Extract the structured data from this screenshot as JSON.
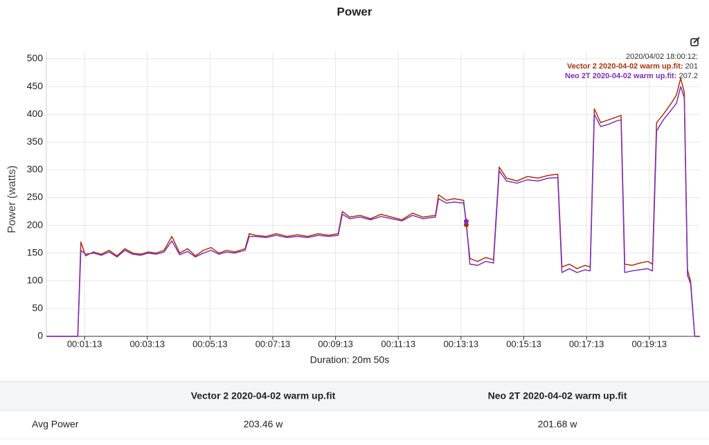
{
  "chart_data": {
    "type": "line",
    "title": "Power",
    "xlabel": "Duration: 20m 50s",
    "ylabel": "Power (watts)",
    "xlim": [
      0,
      1250
    ],
    "ylim": [
      0,
      512
    ],
    "xticks": [
      {
        "value": 73,
        "label": "00:01:13"
      },
      {
        "value": 193,
        "label": "00:03:13"
      },
      {
        "value": 313,
        "label": "00:05:13"
      },
      {
        "value": 433,
        "label": "00:07:13"
      },
      {
        "value": 553,
        "label": "00:09:13"
      },
      {
        "value": 673,
        "label": "00:11:13"
      },
      {
        "value": 793,
        "label": "00:13:13"
      },
      {
        "value": 913,
        "label": "00:15:13"
      },
      {
        "value": 1033,
        "label": "00:17:13"
      },
      {
        "value": 1153,
        "label": "00:19:13"
      }
    ],
    "yticks": [
      0,
      50,
      100,
      150,
      200,
      250,
      300,
      350,
      400,
      450,
      500
    ],
    "grid": true,
    "x": [
      0,
      60,
      66,
      75,
      90,
      105,
      120,
      135,
      150,
      165,
      180,
      195,
      210,
      225,
      240,
      255,
      270,
      285,
      300,
      315,
      330,
      345,
      360,
      380,
      388,
      400,
      420,
      440,
      460,
      480,
      500,
      520,
      540,
      558,
      566,
      580,
      600,
      620,
      640,
      660,
      680,
      700,
      720,
      744,
      750,
      765,
      780,
      798,
      803,
      810,
      825,
      840,
      855,
      866,
      880,
      900,
      920,
      940,
      960,
      978,
      986,
      1000,
      1015,
      1030,
      1040,
      1048,
      1060,
      1075,
      1090,
      1099,
      1106,
      1120,
      1135,
      1150,
      1159,
      1167,
      1180,
      1195,
      1205,
      1213,
      1220,
      1226,
      1232,
      1240,
      1250
    ],
    "series": [
      {
        "name": "Vector 2 2020-04-02 warm up.fit",
        "color": "#a8320c",
        "values": [
          0,
          0,
          170,
          145,
          152,
          148,
          155,
          145,
          158,
          150,
          148,
          152,
          150,
          155,
          180,
          150,
          158,
          145,
          155,
          160,
          150,
          155,
          152,
          158,
          185,
          182,
          180,
          185,
          180,
          183,
          180,
          185,
          182,
          185,
          225,
          215,
          218,
          212,
          220,
          215,
          210,
          222,
          215,
          218,
          255,
          245,
          248,
          245,
          201,
          140,
          135,
          142,
          138,
          305,
          285,
          280,
          288,
          285,
          290,
          292,
          125,
          130,
          122,
          128,
          125,
          410,
          385,
          390,
          395,
          398,
          130,
          128,
          132,
          135,
          130,
          385,
          400,
          420,
          435,
          465,
          440,
          120,
          100,
          0,
          0
        ]
      },
      {
        "name": "Neo 2T 2020-04-02 warm up.fit",
        "color": "#7a2fb8",
        "values": [
          0,
          0,
          155,
          148,
          150,
          146,
          152,
          143,
          155,
          148,
          146,
          150,
          148,
          152,
          172,
          147,
          153,
          143,
          150,
          155,
          148,
          152,
          150,
          155,
          180,
          180,
          178,
          182,
          178,
          180,
          178,
          182,
          180,
          182,
          220,
          212,
          215,
          210,
          216,
          212,
          208,
          218,
          212,
          215,
          248,
          240,
          242,
          240,
          207.2,
          130,
          128,
          135,
          132,
          298,
          280,
          276,
          282,
          280,
          285,
          286,
          115,
          122,
          115,
          120,
          118,
          400,
          378,
          382,
          388,
          390,
          115,
          118,
          120,
          122,
          118,
          370,
          390,
          408,
          420,
          450,
          430,
          110,
          95,
          0,
          0
        ]
      }
    ],
    "tooltip_time": "2020/04/02 18:00:12:"
  },
  "table": {
    "columns": [
      "Vector 2 2020-04-02 warm up.fit",
      "Neo 2T 2020-04-02 warm up.fit"
    ],
    "rows": [
      {
        "label": "Avg Power",
        "values": [
          "203.46 w",
          "201.68 w"
        ]
      }
    ]
  }
}
